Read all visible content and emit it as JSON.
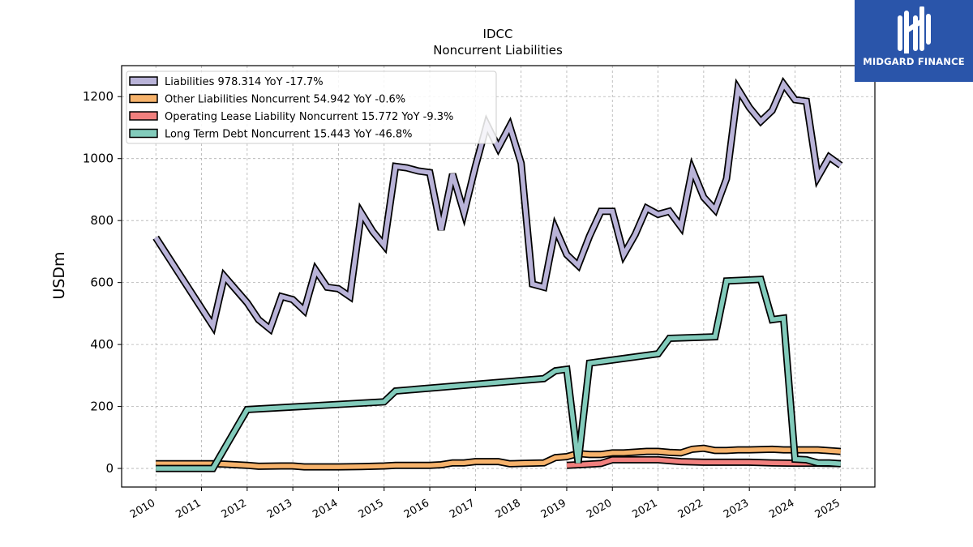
{
  "chart_data": {
    "type": "line",
    "title": "IDCC",
    "subtitle": "Noncurrent  Liabilities",
    "xlabel": "",
    "ylabel": "USDm",
    "ylim": [
      -60,
      1300
    ],
    "xlim": [
      2009.25,
      2025.75
    ],
    "yticks": [
      0,
      200,
      400,
      600,
      800,
      1000,
      1200
    ],
    "xticks": [
      "2010",
      "2011",
      "2012",
      "2013",
      "2014",
      "2015",
      "2016",
      "2017",
      "2018",
      "2019",
      "2020",
      "2021",
      "2022",
      "2023",
      "2024",
      "2025"
    ],
    "grid": true,
    "legend_position": "top-left",
    "series": [
      {
        "name": "Liabilities  978.314 YoY -17.7%",
        "color": "#b9b3d8",
        "points": [
          [
            2010.0,
            745
          ],
          [
            2011.25,
            460
          ],
          [
            2011.5,
            620
          ],
          [
            2012.0,
            535
          ],
          [
            2012.25,
            480
          ],
          [
            2012.5,
            450
          ],
          [
            2012.75,
            555
          ],
          [
            2013.0,
            545
          ],
          [
            2013.25,
            510
          ],
          [
            2013.5,
            640
          ],
          [
            2013.75,
            585
          ],
          [
            2014.0,
            580
          ],
          [
            2014.25,
            555
          ],
          [
            2014.5,
            825
          ],
          [
            2014.75,
            765
          ],
          [
            2015.0,
            720
          ],
          [
            2015.25,
            975
          ],
          [
            2015.5,
            970
          ],
          [
            2015.75,
            960
          ],
          [
            2016.0,
            955
          ],
          [
            2016.25,
            770
          ],
          [
            2016.5,
            950
          ],
          [
            2016.75,
            825
          ],
          [
            2017.0,
            975
          ],
          [
            2017.25,
            1110
          ],
          [
            2017.5,
            1035
          ],
          [
            2017.75,
            1105
          ],
          [
            2018.0,
            985
          ],
          [
            2018.25,
            595
          ],
          [
            2018.5,
            585
          ],
          [
            2018.75,
            775
          ],
          [
            2019.0,
            690
          ],
          [
            2019.25,
            655
          ],
          [
            2019.5,
            750
          ],
          [
            2019.75,
            830
          ],
          [
            2020.0,
            830
          ],
          [
            2020.25,
            690
          ],
          [
            2020.5,
            755
          ],
          [
            2020.75,
            840
          ],
          [
            2021.0,
            820
          ],
          [
            2021.25,
            830
          ],
          [
            2021.5,
            780
          ],
          [
            2021.75,
            965
          ],
          [
            2022.0,
            875
          ],
          [
            2022.25,
            835
          ],
          [
            2022.5,
            935
          ],
          [
            2022.75,
            1225
          ],
          [
            2023.0,
            1165
          ],
          [
            2023.25,
            1120
          ],
          [
            2023.5,
            1155
          ],
          [
            2023.75,
            1240
          ],
          [
            2024.0,
            1190
          ],
          [
            2024.25,
            1185
          ],
          [
            2024.5,
            940
          ],
          [
            2024.75,
            1005
          ],
          [
            2025.0,
            978.314
          ]
        ]
      },
      {
        "name": "Other Liabilities Noncurrent  54.942 YoY -0.6%",
        "color": "#f6b26b",
        "points": [
          [
            2010.0,
            15
          ],
          [
            2011.25,
            15
          ],
          [
            2011.5,
            14
          ],
          [
            2012.0,
            10
          ],
          [
            2012.25,
            7
          ],
          [
            2012.75,
            8
          ],
          [
            2013.0,
            8
          ],
          [
            2013.25,
            5
          ],
          [
            2014.0,
            5
          ],
          [
            2014.5,
            6
          ],
          [
            2015.0,
            8
          ],
          [
            2015.25,
            10
          ],
          [
            2016.0,
            10
          ],
          [
            2016.25,
            12
          ],
          [
            2016.5,
            18
          ],
          [
            2016.75,
            18
          ],
          [
            2017.0,
            22
          ],
          [
            2017.25,
            22
          ],
          [
            2017.5,
            22
          ],
          [
            2017.75,
            15
          ],
          [
            2018.0,
            16
          ],
          [
            2018.5,
            18
          ],
          [
            2018.75,
            35
          ],
          [
            2019.0,
            38
          ],
          [
            2019.25,
            48
          ],
          [
            2019.5,
            45
          ],
          [
            2019.75,
            45
          ],
          [
            2020.0,
            50
          ],
          [
            2020.25,
            50
          ],
          [
            2020.75,
            55
          ],
          [
            2021.0,
            55
          ],
          [
            2021.25,
            52
          ],
          [
            2021.5,
            50
          ],
          [
            2021.75,
            62
          ],
          [
            2022.0,
            65
          ],
          [
            2022.25,
            58
          ],
          [
            2022.5,
            58
          ],
          [
            2022.75,
            60
          ],
          [
            2023.0,
            60
          ],
          [
            2023.5,
            62
          ],
          [
            2023.75,
            60
          ],
          [
            2024.0,
            60
          ],
          [
            2024.25,
            60
          ],
          [
            2024.5,
            60
          ],
          [
            2025.0,
            54.942
          ]
        ]
      },
      {
        "name": "Operating Lease Liability Noncurrent  15.772 YoY -9.3%",
        "color": "#f1807e",
        "points": [
          [
            2019.0,
            10
          ],
          [
            2019.25,
            12
          ],
          [
            2019.5,
            14
          ],
          [
            2019.75,
            16
          ],
          [
            2020.0,
            28
          ],
          [
            2020.5,
            28
          ],
          [
            2021.0,
            28
          ],
          [
            2021.25,
            25
          ],
          [
            2021.5,
            22
          ],
          [
            2022.0,
            20
          ],
          [
            2022.5,
            20
          ],
          [
            2023.0,
            20
          ],
          [
            2023.5,
            18
          ],
          [
            2024.0,
            17
          ],
          [
            2024.5,
            17
          ],
          [
            2025.0,
            15.772
          ]
        ]
      },
      {
        "name": "Long Term Debt Noncurrent  15.443 YoY -46.8%",
        "color": "#82cbbb",
        "points": [
          [
            2010.0,
            0
          ],
          [
            2011.25,
            0
          ],
          [
            2012.0,
            190
          ],
          [
            2015.0,
            215
          ],
          [
            2015.25,
            250
          ],
          [
            2018.5,
            290
          ],
          [
            2018.75,
            315
          ],
          [
            2019.0,
            320
          ],
          [
            2019.25,
            18
          ],
          [
            2019.5,
            340
          ],
          [
            2021.0,
            370
          ],
          [
            2021.25,
            420
          ],
          [
            2022.25,
            425
          ],
          [
            2022.5,
            605
          ],
          [
            2023.25,
            610
          ],
          [
            2023.5,
            480
          ],
          [
            2023.75,
            485
          ],
          [
            2024.0,
            30
          ],
          [
            2024.25,
            28
          ],
          [
            2024.5,
            18
          ],
          [
            2024.75,
            18
          ],
          [
            2025.0,
            15.443
          ]
        ]
      }
    ]
  },
  "branding": {
    "logo_text": "MIDGARD FINANCE",
    "logo_bg": "#2a55aa",
    "logo_icon": "midgard-mark-icon"
  }
}
